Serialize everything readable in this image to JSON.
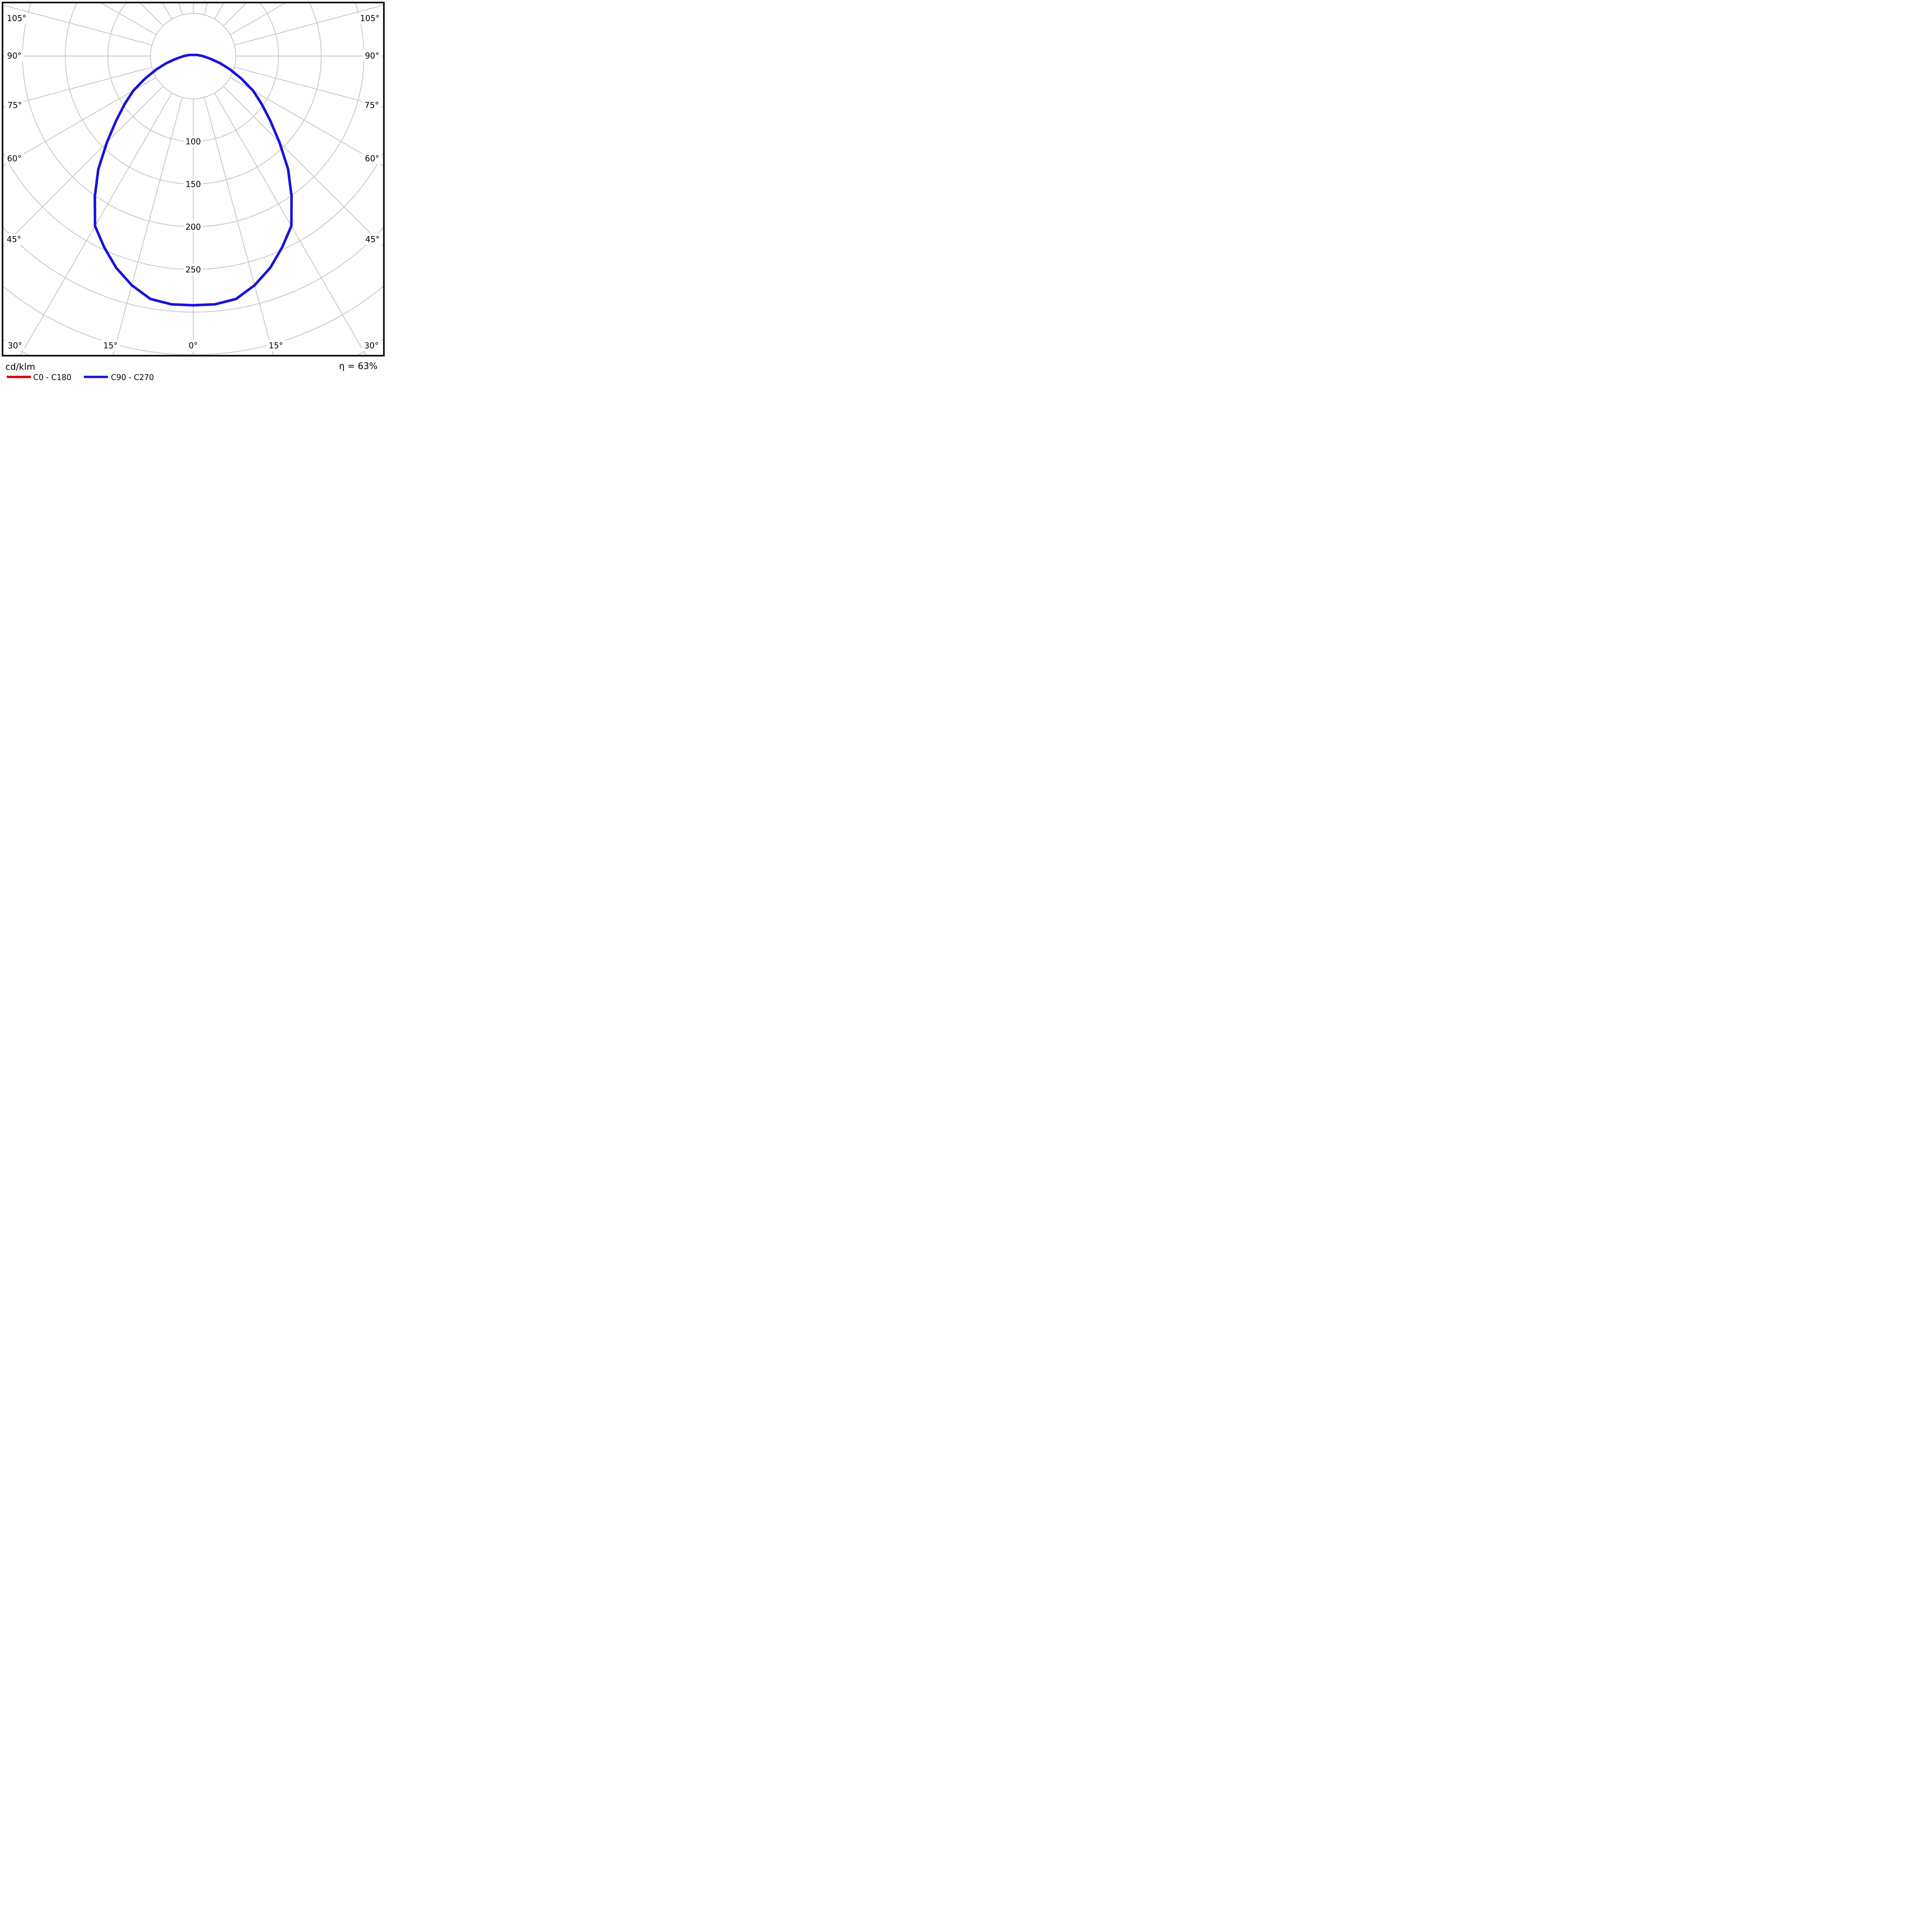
{
  "figure": {
    "unit_label": "cd/klm",
    "efficiency_text": "η = 63%"
  },
  "legend": [
    {
      "label": "C0 - C180",
      "color": "#e10000"
    },
    {
      "label": "C90 - C270",
      "color": "#1414dd"
    }
  ],
  "grid": {
    "line_color": "#c8c8c8",
    "border_color": "#000000",
    "background": "#ffffff"
  },
  "chart_data": {
    "type": "line",
    "subtype": "polar-photometric-intensity",
    "title": "",
    "unit": "cd/klm",
    "efficiency_percent": 63,
    "gamma_step_deg": 5,
    "ray_step_deg": 15,
    "radial_circles": [
      50,
      100,
      150,
      200,
      250,
      300,
      350,
      400
    ],
    "radial_tick_labels": [
      "100",
      "150",
      "200",
      "250"
    ],
    "radial_tick_values": [
      100,
      150,
      200,
      250
    ],
    "angle_labels_left": [
      "105°",
      "90°",
      "75°",
      "60°",
      "45°"
    ],
    "angle_labels_right": [
      "105°",
      "90°",
      "75°",
      "60°",
      "45°"
    ],
    "angle_labels_bottom": [
      "30°",
      "15°",
      "0°",
      "15°",
      "30°"
    ],
    "gamma_deg": [
      0,
      5,
      10,
      15,
      20,
      25,
      30,
      35,
      40,
      45,
      50,
      55,
      60,
      65,
      70,
      75,
      80,
      85,
      90,
      95,
      100,
      105
    ],
    "series": [
      {
        "name": "C0 - C180",
        "color": "#e10000",
        "values": [
          292,
          292,
          289,
          278,
          264,
          247,
          230,
          201,
          173,
          143,
          118,
          98,
          81,
          62,
          46,
          33,
          22,
          15,
          11,
          8,
          6,
          5
        ],
        "note": "coincides with C90 - C270 curve; drawn beneath it"
      },
      {
        "name": "C90 - C270",
        "color": "#1414dd",
        "values": [
          292,
          292,
          289,
          278,
          264,
          247,
          230,
          201,
          173,
          143,
          118,
          98,
          81,
          62,
          46,
          33,
          22,
          15,
          11,
          8,
          6,
          5
        ]
      }
    ],
    "rlim": [
      0,
      450
    ],
    "symmetric_about_vertical_axis": true,
    "zero_deg_direction": "down"
  }
}
